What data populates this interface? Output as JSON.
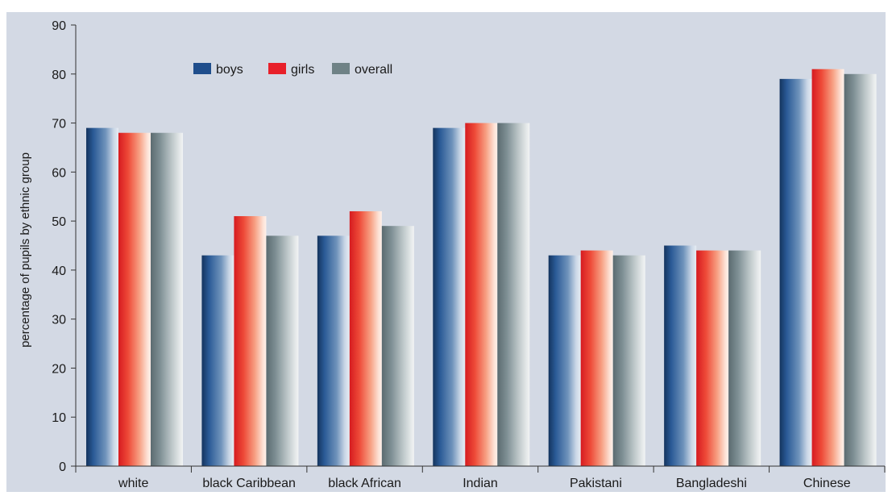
{
  "chart_data": {
    "type": "bar",
    "title": "",
    "xlabel": "",
    "ylabel": "percentage of pupils by ethnic group",
    "ylim": [
      0,
      90
    ],
    "yticks": [
      0,
      10,
      20,
      30,
      40,
      50,
      60,
      70,
      80,
      90
    ],
    "grid": false,
    "legend_position": "top-left",
    "categories": [
      "white",
      "black Caribbean",
      "black African",
      "Indian",
      "Pakistani",
      "Bangladeshi",
      "Chinese"
    ],
    "series": [
      {
        "name": "boys",
        "color": "#1f4e8c",
        "values": [
          69,
          43,
          47,
          69,
          43,
          45,
          79
        ]
      },
      {
        "name": "girls",
        "color": "#e8202a",
        "values": [
          68,
          51,
          52,
          70,
          44,
          44,
          81
        ]
      },
      {
        "name": "overall",
        "color": "#6f8286",
        "values": [
          68,
          47,
          49,
          70,
          43,
          44,
          80
        ]
      }
    ],
    "colors": {
      "plot_background": "#d3d9e4",
      "frame_background": "#ffffff",
      "axis": "#333333"
    }
  }
}
